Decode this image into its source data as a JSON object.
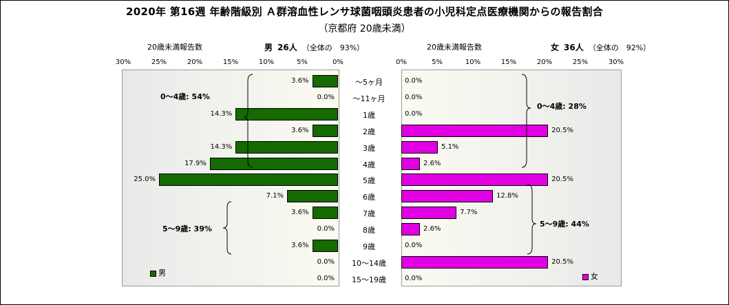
{
  "title": "2020年 第16週 年齢階級別 Ａ群溶血性レンサ球菌咽頭炎患者の小児科定点医療機関からの報告割合",
  "subtitle": "（京都府 20歳未満）",
  "left_header": {
    "label": "20歳未満報告数",
    "sex": "男",
    "count": "26人",
    "share": "（全体の　93%）"
  },
  "right_header": {
    "label": "20歳未満報告数",
    "sex": "女",
    "count": "36人",
    "share": "（全体の　92%）"
  },
  "left_ticks": [
    "30%",
    "25%",
    "20%",
    "15%",
    "10%",
    "5%",
    "0%"
  ],
  "right_ticks": [
    "0%",
    "5%",
    "10%",
    "15%",
    "20%",
    "25%",
    "30%"
  ],
  "annotations": {
    "male_0_4": "0～4歳: 54%",
    "male_5_9": "5～9歳: 39%",
    "female_0_4": "0～4歳: 28%",
    "female_5_9": "5～9歳: 44%"
  },
  "legend": {
    "male": "男",
    "female": "女"
  },
  "colors": {
    "male": "#156a00",
    "female": "#e100e1"
  },
  "chart_data": {
    "type": "bar",
    "orientation": "horizontal-population-pyramid",
    "categories": [
      "～5ヶ月",
      "～11ヶ月",
      "1歳",
      "2歳",
      "3歳",
      "4歳",
      "5歳",
      "6歳",
      "7歳",
      "8歳",
      "9歳",
      "10～14歳",
      "15～19歳"
    ],
    "series": [
      {
        "name": "男",
        "values": [
          3.6,
          0.0,
          14.3,
          3.6,
          14.3,
          17.9,
          25.0,
          7.1,
          3.6,
          0.0,
          3.6,
          0.0,
          0.0
        ],
        "labels": [
          "3.6%",
          "0.0%",
          "14.3%",
          "3.6%",
          "14.3%",
          "17.9%",
          "25.0%",
          "7.1%",
          "3.6%",
          "0.0%",
          "3.6%",
          "0.0%",
          "0.0%"
        ]
      },
      {
        "name": "女",
        "values": [
          0.0,
          0.0,
          0.0,
          20.5,
          5.1,
          2.6,
          20.5,
          12.8,
          7.7,
          2.6,
          0.0,
          20.5,
          0.0
        ],
        "labels": [
          "0.0%",
          "0.0%",
          "0.0%",
          "20.5%",
          "5.1%",
          "2.6%",
          "20.5%",
          "12.8%",
          "7.7%",
          "2.6%",
          "0.0%",
          "20.5%",
          "0.0%"
        ]
      }
    ],
    "xlim": [
      0,
      30
    ],
    "unit": "%"
  }
}
